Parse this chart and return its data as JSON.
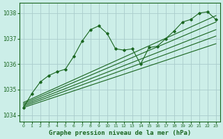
{
  "bg_color": "#cceee8",
  "grid_color": "#aacccc",
  "line_color": "#1a6620",
  "xlabel": "Graphe pression niveau de la mer (hPa)",
  "ylim": [
    1033.75,
    1038.4
  ],
  "xlim": [
    -0.5,
    23.5
  ],
  "yticks": [
    1034,
    1035,
    1036,
    1037,
    1038
  ],
  "xticks": [
    0,
    1,
    2,
    3,
    4,
    5,
    6,
    7,
    8,
    9,
    10,
    11,
    12,
    13,
    14,
    15,
    16,
    17,
    18,
    19,
    20,
    21,
    22,
    23
  ],
  "main_line": {
    "x": [
      0,
      1,
      2,
      3,
      4,
      5,
      6,
      7,
      8,
      9,
      10,
      11,
      12,
      13,
      14,
      15,
      16,
      17,
      18,
      19,
      20,
      21,
      22,
      23
    ],
    "y": [
      1034.3,
      1034.85,
      1035.3,
      1035.55,
      1035.7,
      1035.8,
      1036.3,
      1036.9,
      1037.35,
      1037.5,
      1037.2,
      1036.6,
      1036.55,
      1036.6,
      1036.0,
      1036.65,
      1036.7,
      1037.0,
      1037.3,
      1037.65,
      1037.75,
      1038.0,
      1038.05,
      1037.75
    ]
  },
  "trend_lines": [
    {
      "x0": 0,
      "y0": 1034.3,
      "x1": 23,
      "y1": 1036.8
    },
    {
      "x0": 0,
      "y0": 1034.35,
      "x1": 23,
      "y1": 1037.1
    },
    {
      "x0": 0,
      "y0": 1034.4,
      "x1": 23,
      "y1": 1037.35
    },
    {
      "x0": 0,
      "y0": 1034.45,
      "x1": 23,
      "y1": 1037.65
    },
    {
      "x0": 0,
      "y0": 1034.5,
      "x1": 23,
      "y1": 1037.9
    }
  ]
}
